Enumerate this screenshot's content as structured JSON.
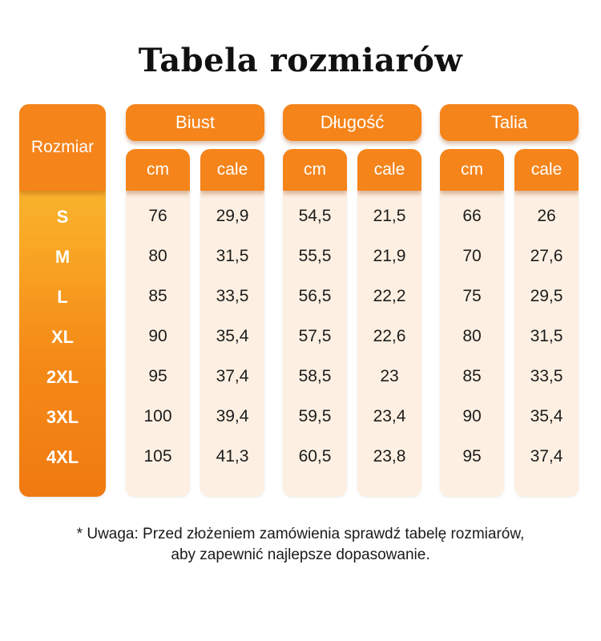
{
  "title": "Tabela rozmiarów",
  "size_header": "Rozmiar",
  "sizes": [
    "S",
    "M",
    "L",
    "XL",
    "2XL",
    "3XL",
    "4XL"
  ],
  "groups": [
    {
      "label": "Biust",
      "units": [
        "cm",
        "cale"
      ]
    },
    {
      "label": "Długość",
      "units": [
        "cm",
        "cale"
      ]
    },
    {
      "label": "Talia",
      "units": [
        "cm",
        "cale"
      ]
    }
  ],
  "rows": [
    [
      "76",
      "29,9",
      "54,5",
      "21,5",
      "66",
      "26"
    ],
    [
      "80",
      "31,5",
      "55,5",
      "21,9",
      "70",
      "27,6"
    ],
    [
      "85",
      "33,5",
      "56,5",
      "22,2",
      "75",
      "29,5"
    ],
    [
      "90",
      "35,4",
      "57,5",
      "22,6",
      "80",
      "31,5"
    ],
    [
      "95",
      "37,4",
      "58,5",
      "23",
      "85",
      "33,5"
    ],
    [
      "100",
      "39,4",
      "59,5",
      "23,4",
      "90",
      "35,4"
    ],
    [
      "105",
      "41,3",
      "60,5",
      "23,8",
      "95",
      "37,4"
    ]
  ],
  "note_line1": "* Uwaga: Przed złożeniem zamówienia sprawdź tabelę rozmiarów,",
  "note_line2": "aby zapewnić najlepsze dopasowanie.",
  "colors": {
    "accent": "#f5841a",
    "cell_bg": "#fdf0e2",
    "gradient_top": "#f7c43a"
  }
}
